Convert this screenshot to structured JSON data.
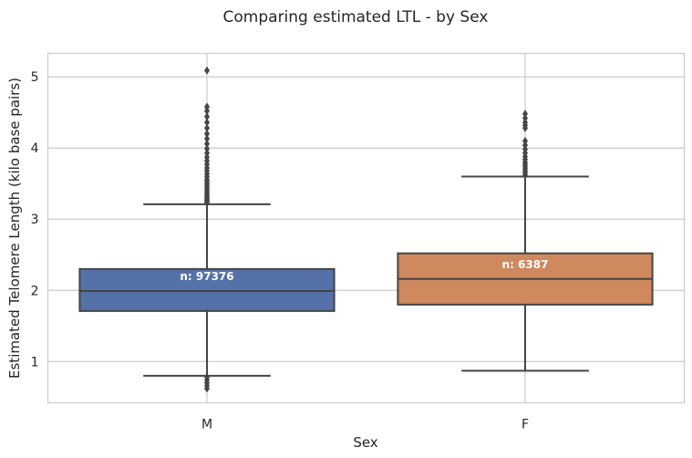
{
  "chart_data": {
    "type": "box",
    "title": "Comparing estimated LTL - by Sex",
    "xlabel": "Sex",
    "ylabel": "Estimated Telomere Length (kilo base pairs)",
    "categories": [
      "M",
      "F"
    ],
    "ylim": [
      0.42,
      5.33
    ],
    "yticks": [
      1,
      2,
      3,
      4,
      5
    ],
    "grid": true,
    "colors": {
      "M": "#5572a8",
      "F": "#d0885f",
      "line": "#454545",
      "grid": "#cccccc"
    },
    "boxes": [
      {
        "category": "M",
        "whisker_low": 0.8,
        "q1": 1.71,
        "median": 1.99,
        "q3": 2.3,
        "whisker_high": 3.21,
        "count_label": "n: 97376",
        "outliers": [
          0.62,
          0.66,
          0.7,
          0.74,
          0.78,
          3.23,
          3.25,
          3.27,
          3.29,
          3.31,
          3.33,
          3.35,
          3.38,
          3.41,
          3.44,
          3.47,
          3.5,
          3.53,
          3.56,
          3.6,
          3.64,
          3.68,
          3.72,
          3.77,
          3.82,
          3.87,
          3.93,
          3.99,
          4.06,
          4.13,
          4.2,
          4.28,
          4.36,
          4.44,
          4.52,
          4.58,
          5.09
        ]
      },
      {
        "category": "F",
        "whisker_low": 0.87,
        "q1": 1.8,
        "median": 2.16,
        "q3": 2.52,
        "whisker_high": 3.6,
        "count_label": "n: 6387",
        "outliers": [
          3.62,
          3.65,
          3.68,
          3.71,
          3.74,
          3.77,
          3.8,
          3.84,
          3.88,
          3.93,
          3.98,
          4.04,
          4.1,
          4.28,
          4.32,
          4.36,
          4.42,
          4.48
        ]
      }
    ]
  }
}
